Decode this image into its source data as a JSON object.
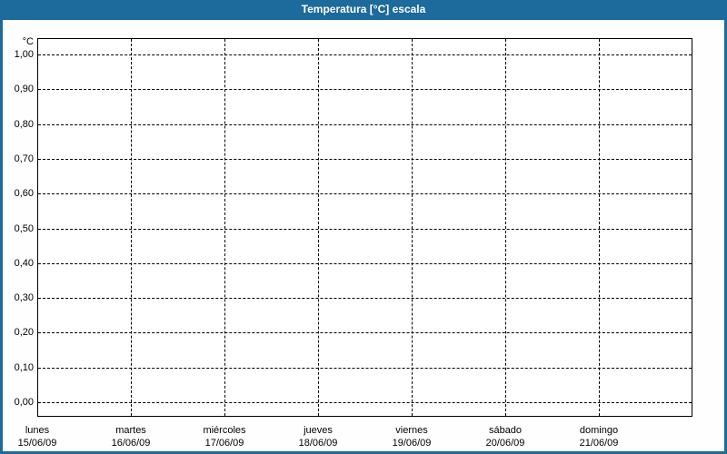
{
  "window": {
    "title": "Temperatura [°C] escala",
    "title_bar_color": "#1d6a9c",
    "frame_color": "#1d6a9c",
    "background_color": "#ffffff"
  },
  "chart_data": {
    "type": "line",
    "title": "Temperatura [°C] escala",
    "ylabel": "°C",
    "xlabel": "",
    "ylim": [
      0.0,
      1.0
    ],
    "y_tick_step": 0.1,
    "y_tick_labels": [
      "1,00",
      "0,90",
      "0,80",
      "0,70",
      "0,60",
      "0,50",
      "0,40",
      "0,30",
      "0,20",
      "0,10",
      "0,00"
    ],
    "y_tick_values": [
      1.0,
      0.9,
      0.8,
      0.7,
      0.6,
      0.5,
      0.4,
      0.3,
      0.2,
      0.1,
      0.0
    ],
    "x_categories": [
      {
        "day": "lunes",
        "date": "15/06/09"
      },
      {
        "day": "martes",
        "date": "16/06/09"
      },
      {
        "day": "miércoles",
        "date": "17/06/09"
      },
      {
        "day": "jueves",
        "date": "18/06/09"
      },
      {
        "day": "viernes",
        "date": "19/06/09"
      },
      {
        "day": "sábado",
        "date": "20/06/09"
      },
      {
        "day": "domingo",
        "date": "21/06/09"
      }
    ],
    "series": [],
    "grid": "dashed",
    "grid_color": "#000000",
    "plot_border_color": "#000000",
    "legend_position": "none"
  }
}
